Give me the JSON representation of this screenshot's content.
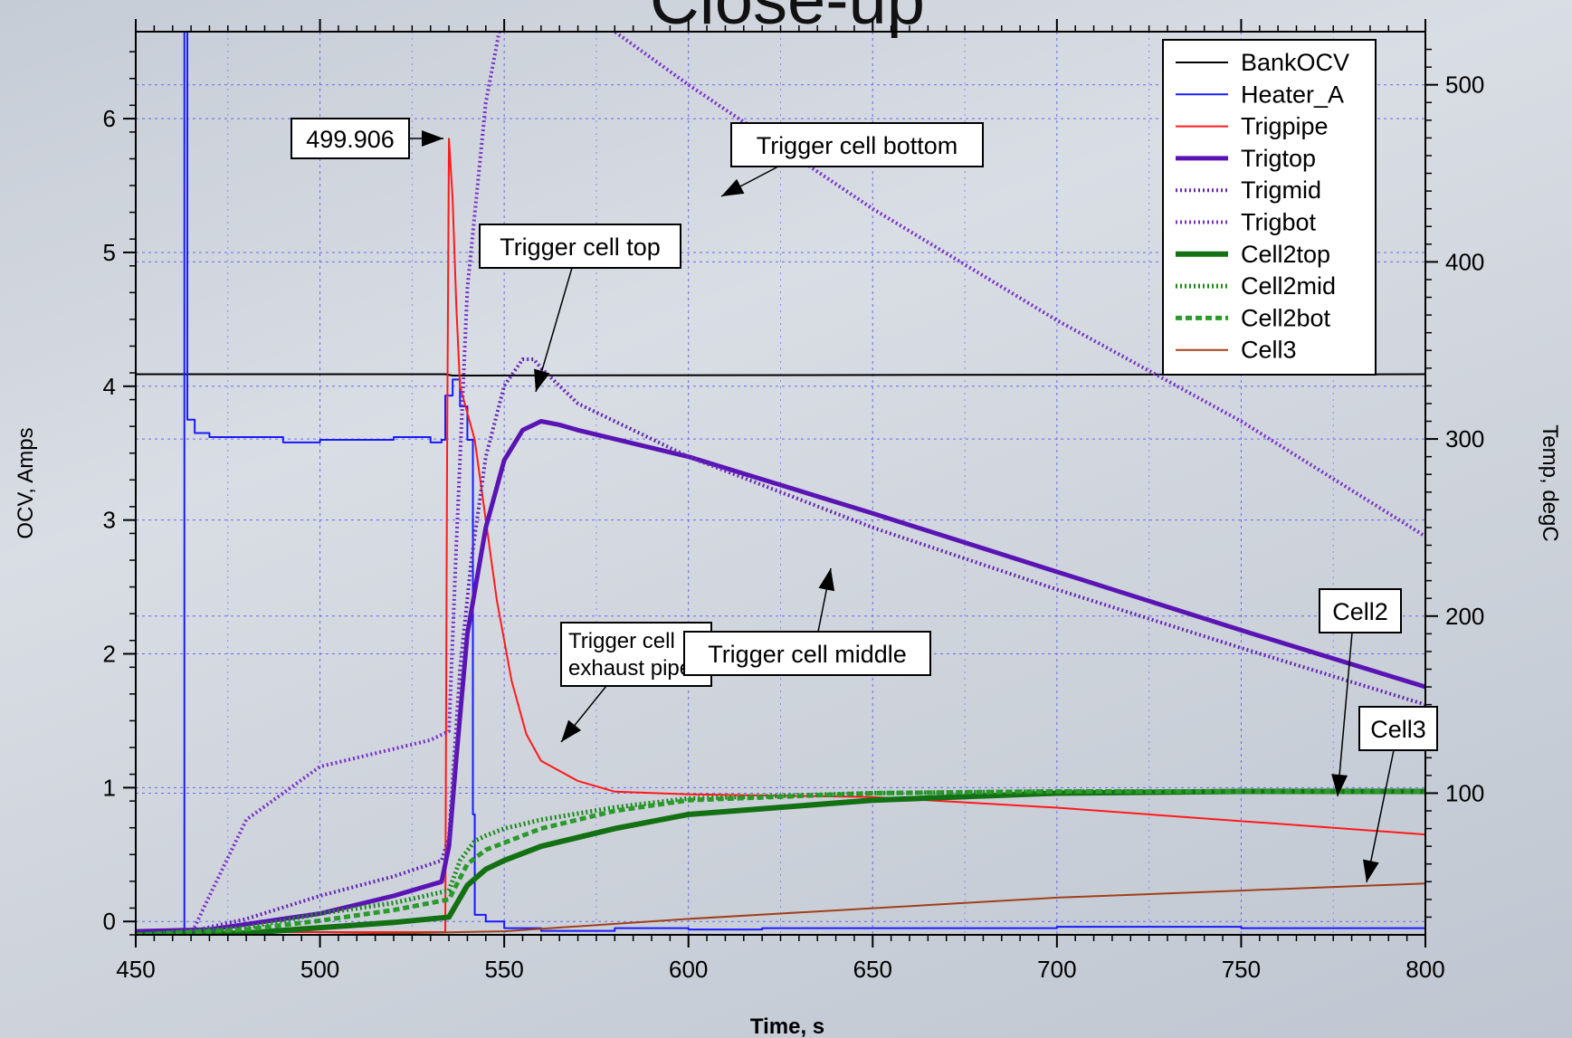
{
  "slide_title": "Close-up",
  "chart_data": {
    "type": "line",
    "title": "",
    "xlabel": "Time, s",
    "ylabel": "OCV, Amps",
    "y2label": "Temp, degC",
    "xlim": [
      450,
      800
    ],
    "ylim": [
      -0.1,
      6.65
    ],
    "y2lim": [
      20,
      530
    ],
    "xticks": [
      450,
      500,
      550,
      600,
      650,
      700,
      750,
      800
    ],
    "yticks": [
      0,
      1,
      2,
      3,
      4,
      5,
      6
    ],
    "y2ticks": [
      100,
      200,
      300,
      400,
      500
    ],
    "grid": true,
    "legend_position": "top-right",
    "series": [
      {
        "name": "BankOCV",
        "axis": "left",
        "color": "#000000",
        "style": "solid",
        "width": 2,
        "x": [
          450,
          534,
          536,
          800
        ],
        "y": [
          4.09,
          4.09,
          4.08,
          4.09
        ]
      },
      {
        "name": "Heater_A",
        "axis": "left",
        "color": "#1a1aff",
        "style": "step",
        "width": 2,
        "x": [
          450,
          463,
          463.2,
          464,
          466,
          470,
          480,
          490,
          500,
          510,
          520,
          530,
          533,
          534,
          536,
          538,
          540,
          541.5,
          542,
          545,
          550,
          560,
          580,
          600,
          620,
          650,
          700,
          750,
          800
        ],
        "y": [
          -0.07,
          -0.07,
          6.7,
          3.75,
          3.65,
          3.62,
          3.62,
          3.58,
          3.6,
          3.6,
          3.62,
          3.58,
          3.6,
          3.93,
          4.05,
          3.85,
          3.6,
          0.8,
          0.05,
          0.0,
          -0.05,
          -0.07,
          -0.05,
          -0.06,
          -0.05,
          -0.05,
          -0.04,
          -0.05,
          -0.05
        ]
      },
      {
        "name": "Trigpipe",
        "axis": "left",
        "color": "#ff1a1a",
        "style": "solid",
        "width": 2,
        "x": [
          450,
          534,
          534.5,
          535,
          536,
          537,
          538,
          540,
          542,
          545,
          548,
          552,
          556,
          560,
          570,
          580,
          600,
          650,
          700,
          750,
          800
        ],
        "y": [
          -0.08,
          -0.08,
          3.5,
          5.85,
          5.4,
          4.6,
          4.0,
          3.8,
          3.6,
          3.0,
          2.4,
          1.8,
          1.4,
          1.2,
          1.05,
          0.97,
          0.95,
          0.93,
          0.85,
          0.75,
          0.65
        ]
      },
      {
        "name": "Trigtop",
        "axis": "right",
        "color": "#5a14b4",
        "style": "solid",
        "width": 5,
        "x": [
          450,
          470,
          500,
          520,
          533,
          535,
          537,
          540,
          545,
          550,
          555,
          560,
          565,
          570,
          600,
          650,
          700,
          750,
          800
        ],
        "y": [
          22,
          23,
          32,
          42,
          50,
          70,
          120,
          190,
          250,
          288,
          305,
          310,
          308,
          305,
          290,
          258,
          225,
          192,
          160
        ]
      },
      {
        "name": "Trigmid",
        "axis": "right",
        "color": "#6428b4",
        "style": "dotted",
        "width": 4,
        "x": [
          450,
          465,
          480,
          500,
          520,
          533,
          535,
          538,
          541,
          545,
          550,
          555,
          558,
          560,
          565,
          570,
          600,
          650,
          700,
          750,
          800
        ],
        "y": [
          20,
          22,
          29,
          42,
          53,
          62,
          75,
          170,
          230,
          290,
          330,
          345,
          345,
          340,
          330,
          320,
          290,
          250,
          215,
          182,
          150
        ]
      },
      {
        "name": "Trigbot",
        "axis": "right",
        "color": "#7832c8",
        "style": "dotted",
        "width": 4,
        "x": [
          450,
          465,
          470,
          480,
          500,
          520,
          530,
          535,
          537,
          540,
          545,
          550,
          555,
          558,
          560,
          570,
          600,
          650,
          700,
          750,
          800
        ],
        "y": [
          20,
          20,
          42,
          85,
          115,
          125,
          130,
          135,
          240,
          385,
          490,
          545,
          560,
          562,
          560,
          545,
          500,
          430,
          367,
          310,
          245
        ]
      },
      {
        "name": "Cell2top",
        "axis": "right",
        "color": "#137013",
        "style": "solid",
        "width": 6,
        "x": [
          450,
          480,
          500,
          520,
          535,
          540,
          545,
          550,
          560,
          580,
          600,
          650,
          700,
          750,
          800
        ],
        "y": [
          20,
          21,
          24,
          27,
          30,
          48,
          57,
          62,
          70,
          80,
          88,
          96,
          100,
          101,
          101
        ]
      },
      {
        "name": "Cell2mid",
        "axis": "right",
        "color": "#1a8a1a",
        "style": "dotted",
        "width": 5,
        "x": [
          450,
          480,
          500,
          520,
          535,
          538,
          542,
          545,
          550,
          560,
          580,
          600,
          650,
          700,
          750,
          800
        ],
        "y": [
          20,
          24,
          32,
          38,
          45,
          62,
          73,
          76,
          80,
          85,
          92,
          97,
          100,
          101,
          101,
          101
        ]
      },
      {
        "name": "Cell2bot",
        "axis": "right",
        "color": "#2a9a2a",
        "style": "dashed",
        "width": 5,
        "x": [
          450,
          480,
          500,
          520,
          535,
          540,
          545,
          550,
          560,
          580,
          600,
          650,
          700,
          750,
          800
        ],
        "y": [
          20,
          23,
          28,
          34,
          40,
          60,
          68,
          72,
          80,
          90,
          96,
          100,
          101,
          101,
          101
        ]
      },
      {
        "name": "Cell3",
        "axis": "right",
        "color": "#a0401a",
        "style": "solid",
        "width": 2,
        "x": [
          450,
          500,
          550,
          600,
          650,
          700,
          750,
          800
        ],
        "y": [
          20,
          20,
          22,
          29,
          35,
          41,
          45,
          49
        ]
      }
    ],
    "annotations": [
      {
        "text": "499.906",
        "color": "#000000"
      },
      {
        "text": "Trigger cell bottom",
        "color": "#000000"
      },
      {
        "text": "Trigger cell top",
        "color": "#000000"
      },
      {
        "text": "Trigger cell exhaust pipe",
        "color": "#ff0000"
      },
      {
        "text": "Trigger cell middle",
        "color": "#000000"
      },
      {
        "text": "Cell2",
        "color": "#000000"
      },
      {
        "text": "Cell3",
        "color": "#000000"
      }
    ]
  }
}
